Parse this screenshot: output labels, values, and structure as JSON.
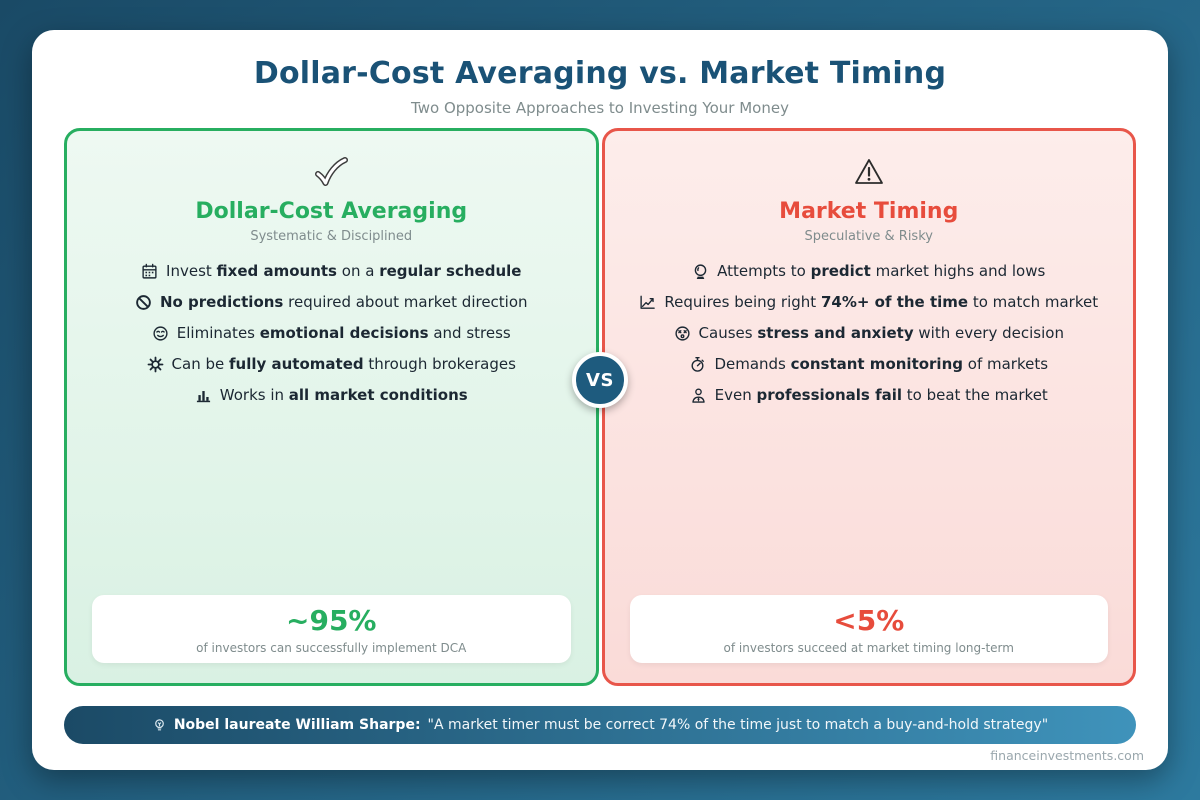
{
  "page": {
    "title": "Dollar-Cost Averaging vs. Market Timing",
    "subtitle": "Two Opposite Approaches to Investing Your Money",
    "vs_label": "VS",
    "footer": "financeinvestments.com"
  },
  "colors": {
    "background_start": "#1a4a66",
    "background_end": "#2d7a9f",
    "heading": "#1a5276",
    "green_accent": "#27ae60",
    "red_accent": "#e74c3c",
    "banner_start": "#1b4a66",
    "banner_end": "#3f93bb",
    "vs_badge": "#1e5b7e"
  },
  "cards": [
    {
      "id": "dollar-cost-averaging",
      "icon": "check-icon",
      "title": "Dollar-Cost Averaging",
      "subtitle": "Systematic & Disciplined",
      "items": [
        {
          "icon": "calendar-icon",
          "segments": [
            {
              "t": "Invest "
            },
            {
              "t": "fixed amounts",
              "b": true
            },
            {
              "t": " on a "
            },
            {
              "t": "regular schedule",
              "b": true
            }
          ]
        },
        {
          "icon": "no-entry-icon",
          "segments": [
            {
              "t": "No predictions",
              "b": true
            },
            {
              "t": " required about market direction"
            }
          ]
        },
        {
          "icon": "relieved-face-icon",
          "segments": [
            {
              "t": "Eliminates "
            },
            {
              "t": "emotional decisions",
              "b": true
            },
            {
              "t": " and stress"
            }
          ]
        },
        {
          "icon": "gear-icon",
          "segments": [
            {
              "t": "Can be "
            },
            {
              "t": "fully automated",
              "b": true
            },
            {
              "t": " through brokerages"
            }
          ]
        },
        {
          "icon": "bar-chart-icon",
          "segments": [
            {
              "t": "Works in "
            },
            {
              "t": "all market conditions",
              "b": true
            }
          ]
        }
      ],
      "stat_value": "~95%",
      "stat_caption": "of investors can successfully implement DCA"
    },
    {
      "id": "market-timing",
      "icon": "warning-icon",
      "title": "Market Timing",
      "subtitle": "Speculative & Risky",
      "items": [
        {
          "icon": "crystal-ball-icon",
          "segments": [
            {
              "t": "Attempts to "
            },
            {
              "t": "predict",
              "b": true
            },
            {
              "t": " market highs and lows"
            }
          ]
        },
        {
          "icon": "chart-increasing-icon",
          "segments": [
            {
              "t": "Requires being right "
            },
            {
              "t": "74%+ of the time",
              "b": true
            },
            {
              "t": " to match market"
            }
          ]
        },
        {
          "icon": "dizzy-face-icon",
          "segments": [
            {
              "t": "Causes "
            },
            {
              "t": "stress and anxiety",
              "b": true
            },
            {
              "t": " with every decision"
            }
          ]
        },
        {
          "icon": "stopwatch-icon",
          "segments": [
            {
              "t": "Demands "
            },
            {
              "t": "constant monitoring",
              "b": true
            },
            {
              "t": " of markets"
            }
          ]
        },
        {
          "icon": "businessperson-icon",
          "segments": [
            {
              "t": "Even "
            },
            {
              "t": "professionals fail",
              "b": true
            },
            {
              "t": " to beat the market"
            }
          ]
        }
      ],
      "stat_value": "<5%",
      "stat_caption": "of investors succeed at market timing long-term"
    }
  ],
  "banner": {
    "icon": "lightbulb-icon",
    "lead": "Nobel laureate William Sharpe:",
    "quote": "\"A market timer must be correct 74% of the time just to match a buy-and-hold strategy\""
  }
}
